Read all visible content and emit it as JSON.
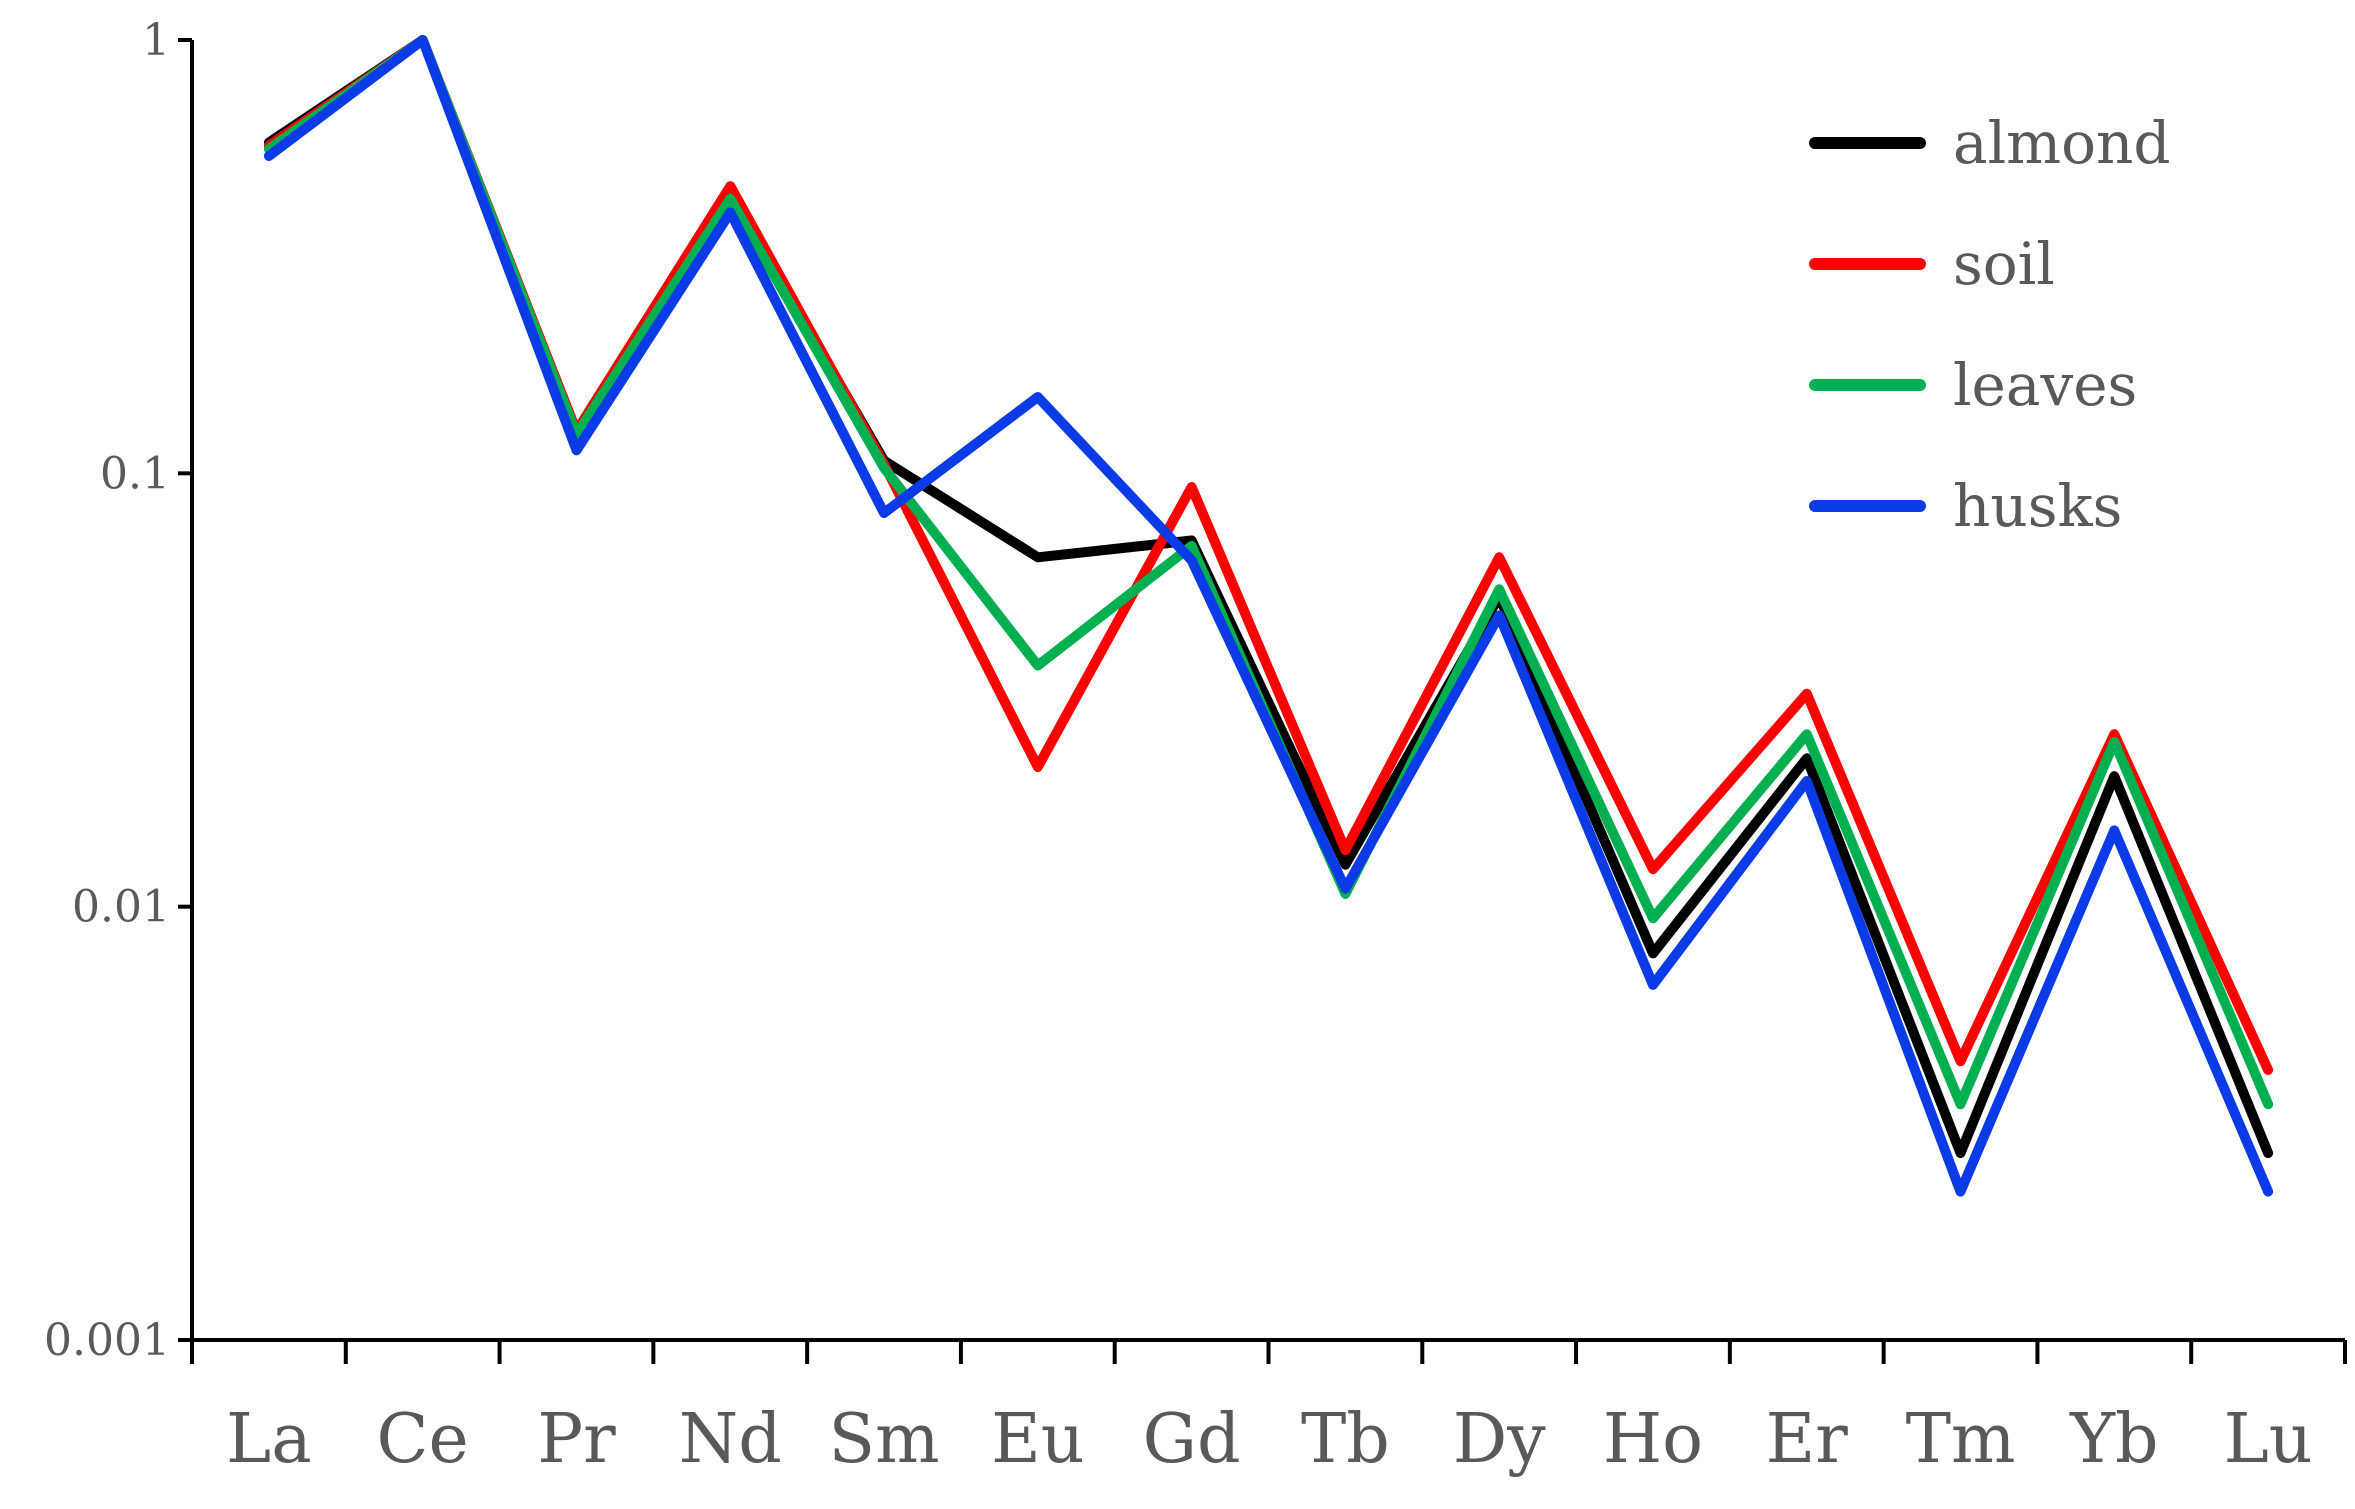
{
  "chart_data": {
    "type": "line",
    "title": "",
    "xlabel": "",
    "ylabel": "",
    "y_scale": "log",
    "ylim": [
      0.001,
      1
    ],
    "y_ticks": [
      "1",
      "0.1",
      "0.01",
      "0.001"
    ],
    "categories": [
      "La",
      "Ce",
      "Pr",
      "Nd",
      "Sm",
      "Eu",
      "Gd",
      "Tb",
      "Dy",
      "Ho",
      "Er",
      "Tm",
      "Yb",
      "Lu"
    ],
    "grid": false,
    "legend_position": "top-right",
    "series": [
      {
        "name": "almond",
        "color": "#000000",
        "values": [
          0.58,
          1.0,
          0.12,
          0.44,
          0.107,
          0.064,
          0.07,
          0.0125,
          0.052,
          0.0078,
          0.022,
          0.0027,
          0.02,
          0.0027
        ]
      },
      {
        "name": "soil",
        "color": "#ff0000",
        "values": [
          0.57,
          1.0,
          0.125,
          0.46,
          0.105,
          0.021,
          0.093,
          0.0135,
          0.064,
          0.0122,
          0.031,
          0.0044,
          0.025,
          0.0042
        ]
      },
      {
        "name": "leaves",
        "color": "#00b050",
        "values": [
          0.56,
          1.0,
          0.123,
          0.43,
          0.103,
          0.036,
          0.068,
          0.0107,
          0.054,
          0.0094,
          0.025,
          0.0035,
          0.024,
          0.0035
        ]
      },
      {
        "name": "husks",
        "color": "#0b3be6",
        "values": [
          0.54,
          1.0,
          0.113,
          0.4,
          0.081,
          0.15,
          0.063,
          0.011,
          0.047,
          0.0066,
          0.0195,
          0.0022,
          0.015,
          0.0022
        ]
      }
    ]
  }
}
